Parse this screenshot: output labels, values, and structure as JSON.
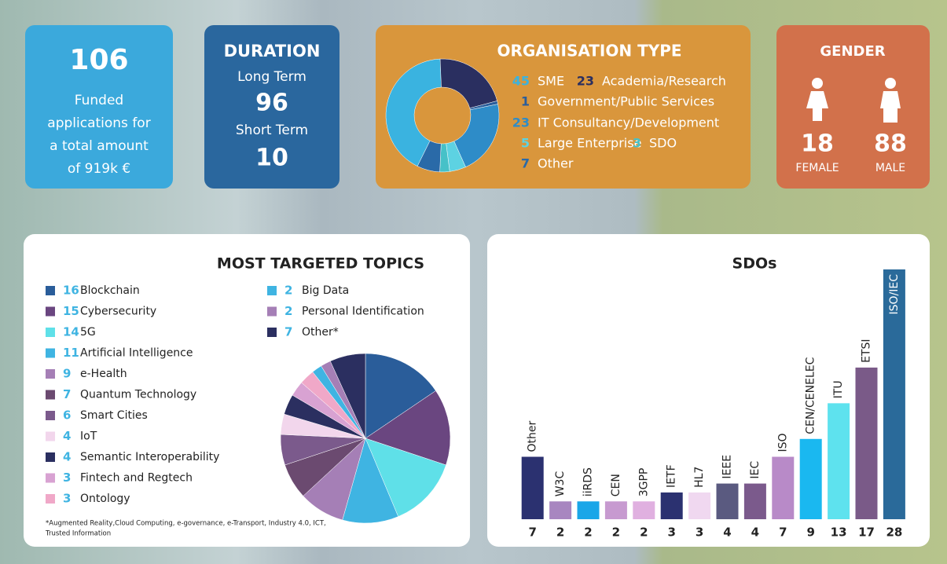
{
  "funded": {
    "number": 106,
    "lines": [
      "Funded",
      "applications for",
      "a total amount",
      "of 919k €"
    ]
  },
  "duration": {
    "title": "DURATION",
    "items": [
      {
        "label": "Long Term",
        "value": 96
      },
      {
        "label": "Short Term",
        "value": 10
      }
    ]
  },
  "gender": {
    "title": "GENDER",
    "items": [
      {
        "value": 18,
        "label": "FEMALE"
      },
      {
        "value": 88,
        "label": "MALE"
      }
    ]
  },
  "chart_data": [
    {
      "type": "donut",
      "title": "ORGANISATION TYPE",
      "categories": [
        "SME",
        "Academia/Research",
        "Government/Public Services",
        "IT Consultancy/Development",
        "Large Enterprise",
        "SDO",
        "Other"
      ],
      "values": [
        45,
        23,
        1,
        23,
        5,
        3,
        7
      ],
      "colors": [
        "#3ab3e0",
        "#2a2f60",
        "#2a5d9a",
        "#2e8cc8",
        "#5dd2e2",
        "#46c1c8",
        "#2a6aa8"
      ]
    },
    {
      "type": "pie",
      "title": "MOST TARGETED TOPICS",
      "categories": [
        "Blockchain",
        "Cybersecurity",
        "5G",
        "Artificial Intelligence",
        "e-Health",
        "Quantum Technology",
        "Smart Cities",
        "IoT",
        "Semantic Interoperability",
        "Fintech and Regtech",
        "Ontology",
        "Big Data",
        "Personal Identification",
        "Other*"
      ],
      "values": [
        16,
        15,
        14,
        11,
        9,
        7,
        6,
        4,
        4,
        3,
        3,
        2,
        2,
        7
      ],
      "colors": [
        "#2a5d9a",
        "#6a4680",
        "#5fe0e8",
        "#3fb4e2",
        "#a57fb6",
        "#6b4a70",
        "#7b5a8c",
        "#f2d6ec",
        "#2b2f60",
        "#d8a2d2",
        "#f0a8c8",
        "#3fb4e2",
        "#a57fb6",
        "#2b2f60"
      ],
      "footnote": [
        "*Augmented Reality,Cloud Computing, e-governance, e-Transport, Industry 4.0, ICT,",
        "Trusted Information"
      ]
    },
    {
      "type": "bar",
      "title": "SDOs",
      "categories": [
        "Other",
        "W3C",
        "iiRDS",
        "CEN",
        "3GPP",
        "IETF",
        "HL7",
        "IEEE",
        "IEC",
        "ISO",
        "CEN/CENELEC",
        "ITU",
        "ETSI",
        "ISO/IEC"
      ],
      "values": [
        7,
        2,
        2,
        2,
        2,
        3,
        3,
        4,
        4,
        7,
        9,
        13,
        17,
        28
      ],
      "colors": [
        "#2b3170",
        "#a886c0",
        "#1aa6e8",
        "#c79ad0",
        "#e0b0e0",
        "#2b3170",
        "#f0d8f0",
        "#5a5a80",
        "#7b5a8c",
        "#b88ac8",
        "#1ab8f0",
        "#5ee2ee",
        "#7a5a88",
        "#2a6a9a"
      ]
    }
  ]
}
